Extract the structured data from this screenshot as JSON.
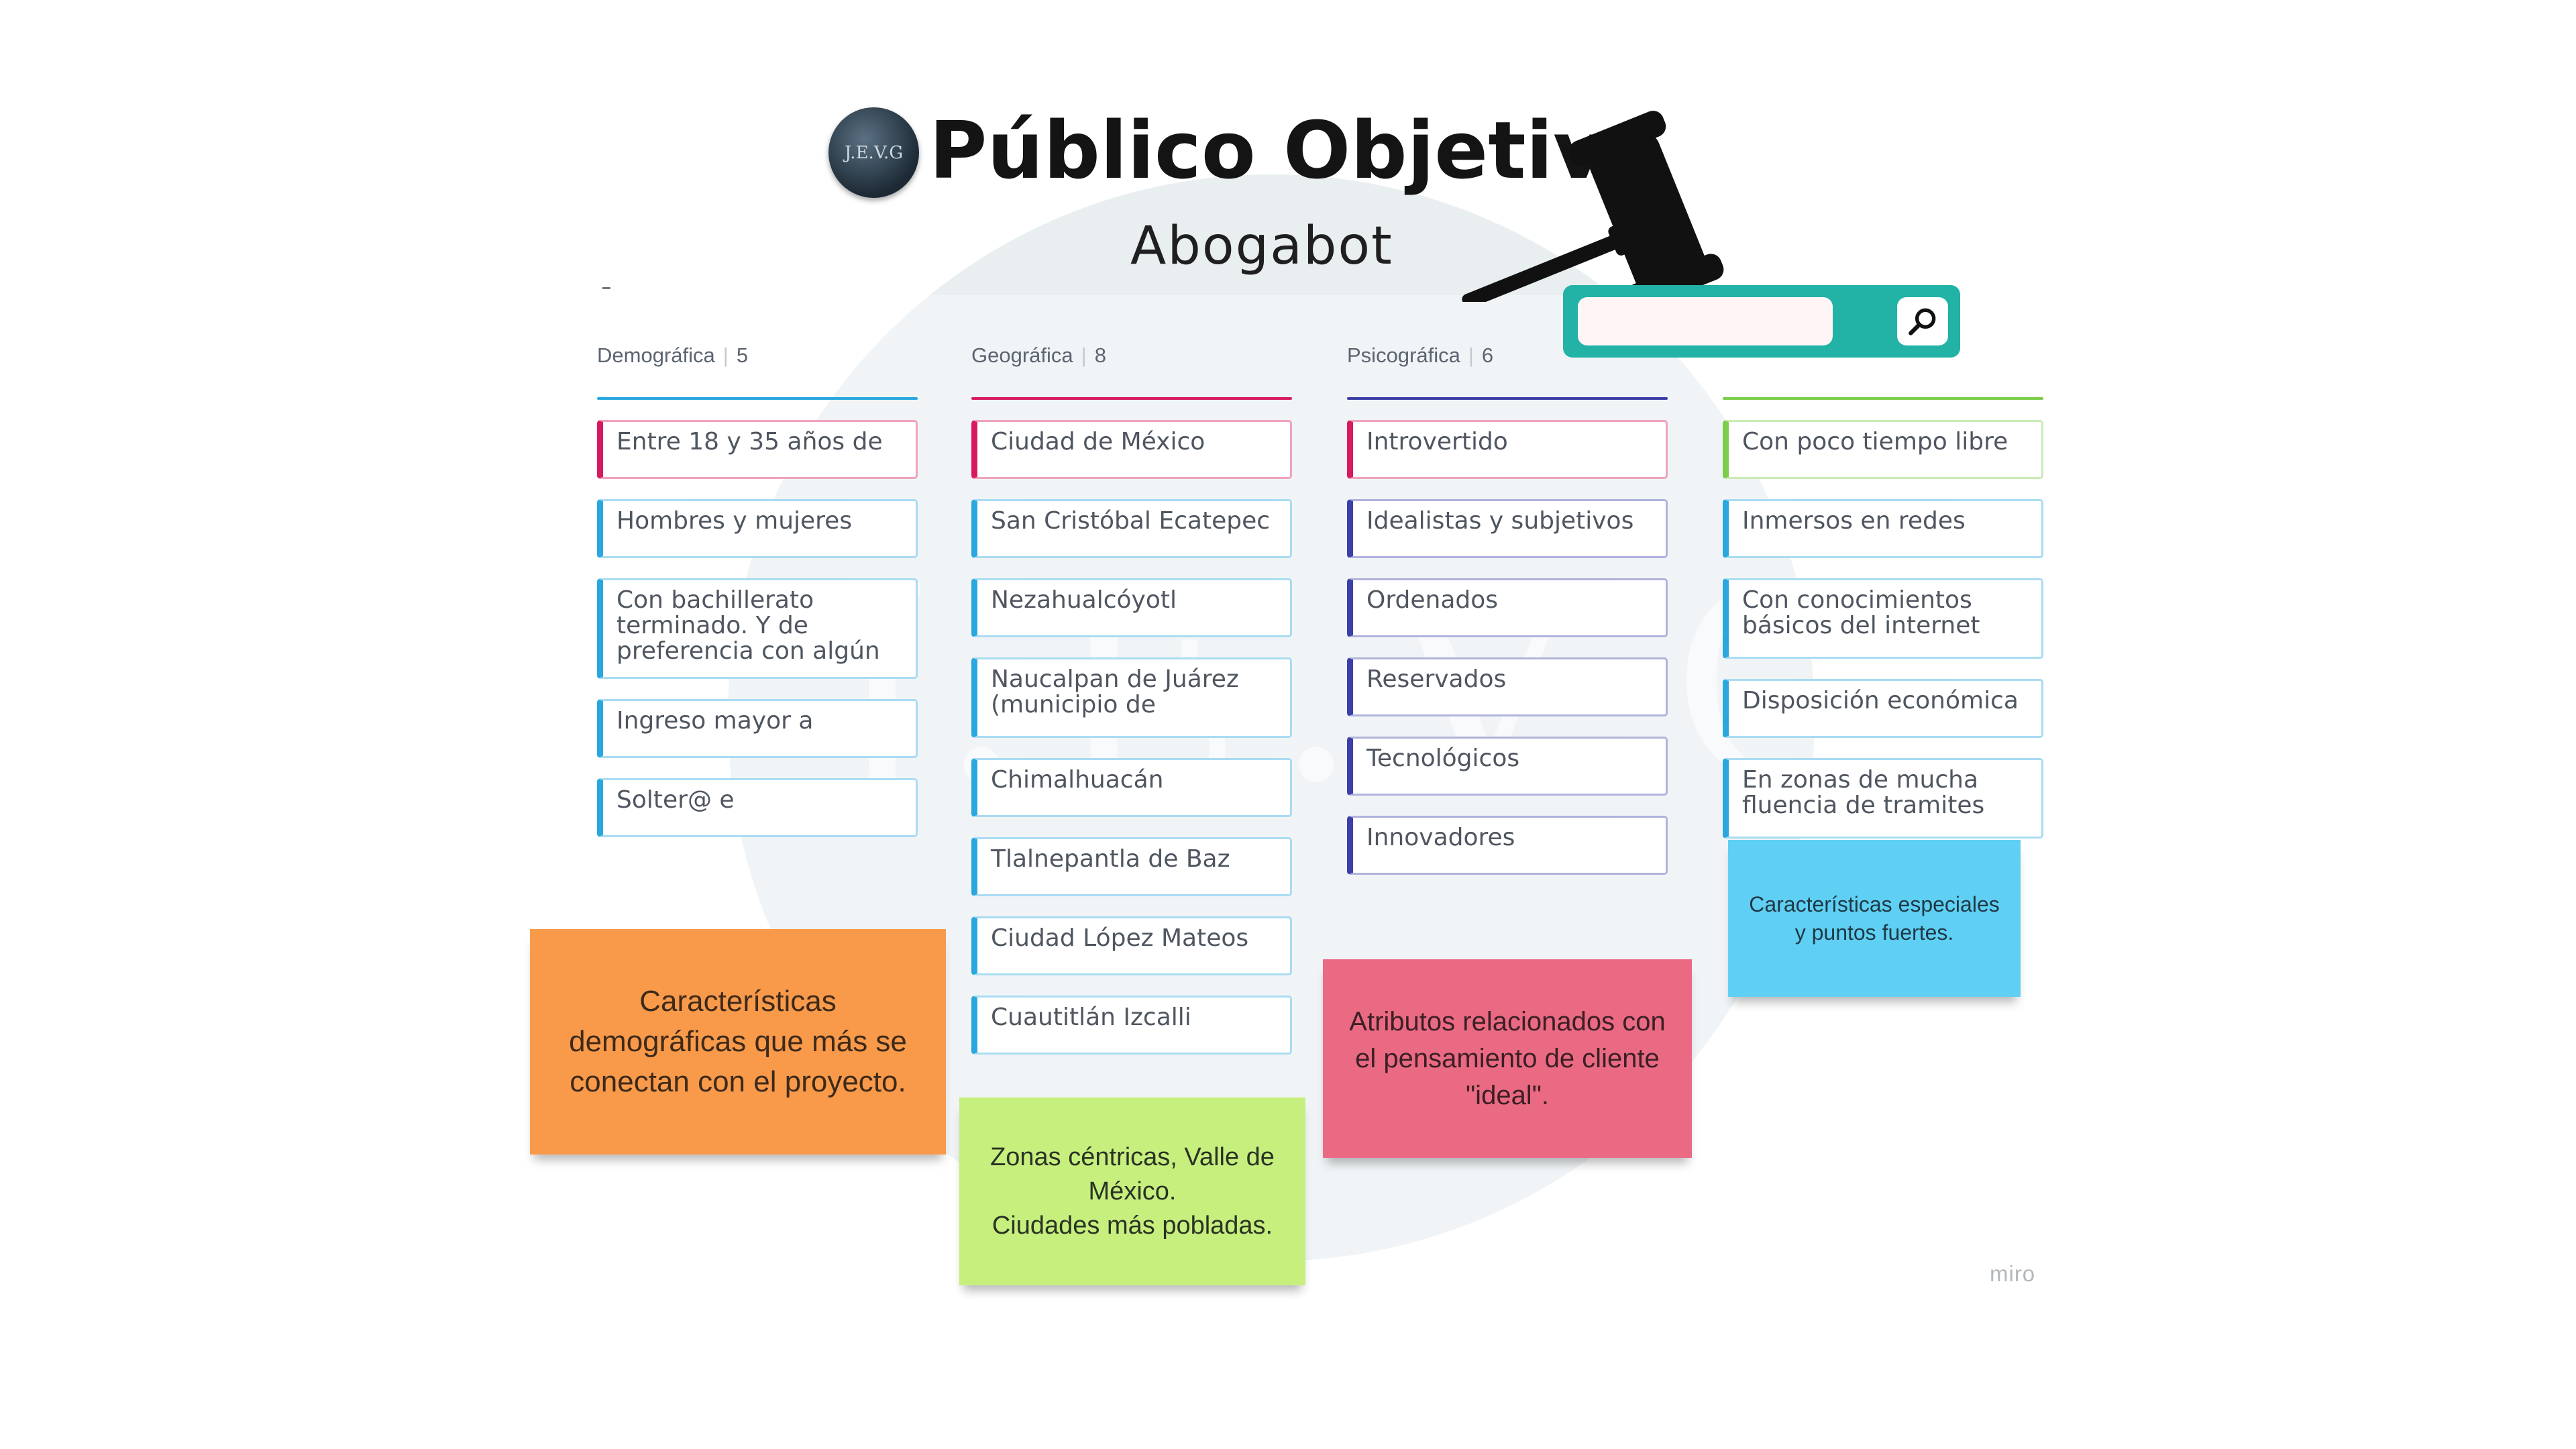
{
  "header": {
    "title": "Público Objetivo",
    "subtitle": "Abogabot",
    "logo_text": "J.E.V.G"
  },
  "search": {
    "value": "",
    "placeholder": "",
    "button_icon": "search-icon"
  },
  "watermark": "J.E.V.G",
  "columns": [
    {
      "label": "Demográfica",
      "count": "5",
      "color": "#2aa7df",
      "cards": [
        {
          "text": "Entre 18 y 35 años de",
          "color": "#d81b60"
        },
        {
          "text": "Hombres y mujeres",
          "color": "#2aa7df"
        },
        {
          "text": "Con bachillerato terminado. Y de preferencia con algún",
          "color": "#2aa7df"
        },
        {
          "text": "Ingreso mayor a",
          "color": "#2aa7df"
        },
        {
          "text": "Solter@ e",
          "color": "#2aa7df"
        }
      ]
    },
    {
      "label": "Geográfica",
      "count": "8",
      "color": "#d81b60",
      "cards": [
        {
          "text": "Ciudad de México",
          "color": "#d81b60"
        },
        {
          "text": "San Cristóbal Ecatepec",
          "color": "#2aa7df"
        },
        {
          "text": "Nezahualcóyotl",
          "color": "#2aa7df"
        },
        {
          "text": "Naucalpan de Juárez (municipio de",
          "color": "#2aa7df"
        },
        {
          "text": "Chimalhuacán",
          "color": "#2aa7df"
        },
        {
          "text": "Tlalnepantla de Baz",
          "color": "#2aa7df"
        },
        {
          "text": "Ciudad López Mateos",
          "color": "#2aa7df"
        },
        {
          "text": "Cuautitlán Izcalli",
          "color": "#2aa7df"
        }
      ]
    },
    {
      "label": "Psicográfica",
      "count": "6",
      "color": "#3d3fa8",
      "cards": [
        {
          "text": "Introvertido",
          "color": "#d81b60"
        },
        {
          "text": "Idealistas y subjetivos",
          "color": "#3d3fa8"
        },
        {
          "text": "Ordenados",
          "color": "#3d3fa8"
        },
        {
          "text": "Reservados",
          "color": "#3d3fa8"
        },
        {
          "text": "Tecnológicos",
          "color": "#3d3fa8"
        },
        {
          "text": "Innovadores",
          "color": "#3d3fa8"
        }
      ]
    },
    {
      "label": "",
      "count": "",
      "color": "#7ccd4a",
      "cards": [
        {
          "text": "Con poco tiempo libre",
          "color": "#7ccd4a"
        },
        {
          "text": "Inmersos en redes",
          "color": "#2aa7df"
        },
        {
          "text": "Con conocimientos básicos del internet",
          "color": "#2aa7df"
        },
        {
          "text": "Disposición económica",
          "color": "#2aa7df"
        },
        {
          "text": "En zonas de mucha fluencia de tramites",
          "color": "#2aa7df"
        }
      ]
    }
  ],
  "stickies": [
    {
      "text": "Características demográficas que más se conectan con el proyecto.",
      "color": "#f99a4a"
    },
    {
      "text": "Zonas céntricas, Valle de México.\nCiudades más pobladas.",
      "color": "#c7ef7e"
    },
    {
      "text": "Atributos relacionados con el pensamiento de cliente \"ideal\".",
      "color": "#ea6a83"
    },
    {
      "text": "Características especiales y puntos fuertes.",
      "color": "#5fd0f3"
    }
  ],
  "brand": "miro"
}
